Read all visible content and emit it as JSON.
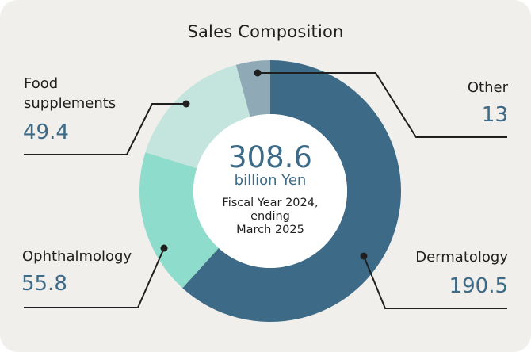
{
  "chart_data": {
    "type": "pie",
    "variant": "donut",
    "title": "Sales Composition",
    "unit": "billion Yen",
    "total": 308.6,
    "period": "Fiscal Year 2024, ending March 2025",
    "categories": [
      "Dermatology",
      "Ophthalmology",
      "Food supplements",
      "Other"
    ],
    "values": [
      190.5,
      55.8,
      49.4,
      13
    ],
    "colors": [
      "#3c6a87",
      "#8edccb",
      "#c4e4de",
      "#8fa9b7"
    ],
    "start_angle": "12 o'clock",
    "direction": "clockwise"
  },
  "card": {
    "title": "Sales Composition",
    "center": {
      "total": "308.6",
      "unit": "billion Yen",
      "period_line1": "Fiscal Year 2024,",
      "period_line2": "ending",
      "period_line3": "March 2025"
    },
    "labels": {
      "food": {
        "name_line1": "Food",
        "name_line2": "supplements",
        "value": "49.4"
      },
      "ophthalmology": {
        "name": "Ophthalmology",
        "value": "55.8"
      },
      "other": {
        "name": "Other",
        "value": "13"
      },
      "dermatology": {
        "name": "Dermatology",
        "value": "190.5"
      }
    }
  }
}
